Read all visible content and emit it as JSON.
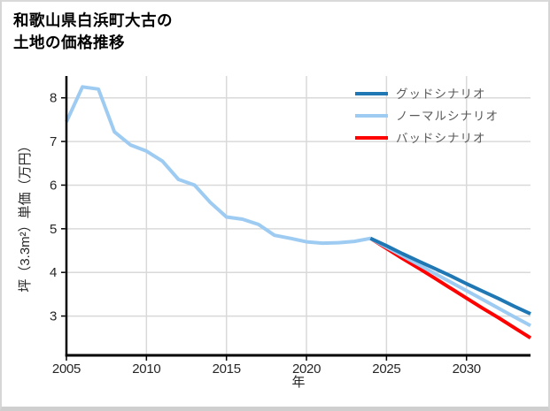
{
  "page": {
    "title_line1": "和歌山県白浜町大古の",
    "title_line2": "土地の価格推移"
  },
  "chart_data": {
    "type": "line",
    "title": "和歌山県白浜町大古の土地の価格推移",
    "xlabel": "年",
    "ylabel": "坪（3.3m²）単価（万円）",
    "xlim": [
      2005,
      2034
    ],
    "ylim": [
      2.1,
      8.5
    ],
    "x_ticks": [
      2005,
      2010,
      2015,
      2020,
      2025,
      2030
    ],
    "y_ticks": [
      3,
      4,
      5,
      6,
      7,
      8
    ],
    "grid": true,
    "legend_position": "top-right",
    "colors": {
      "grid": "#d9d9d9",
      "spine": "#000000",
      "good": "#1f77b4",
      "normal": "#9ecbf2",
      "bad": "#ff0000"
    },
    "series": [
      {
        "name": "グッドシナリオ",
        "key": "good",
        "color": "#1f77b4",
        "x": [
          2024,
          2025,
          2026,
          2027,
          2028,
          2029,
          2030,
          2031,
          2032,
          2033,
          2034
        ],
        "values": [
          4.78,
          4.61,
          4.43,
          4.26,
          4.09,
          3.92,
          3.74,
          3.57,
          3.4,
          3.22,
          3.05
        ]
      },
      {
        "name": "ノーマルシナリオ",
        "key": "normal",
        "color": "#9ecbf2",
        "x": [
          2005,
          2006,
          2007,
          2008,
          2009,
          2010,
          2011,
          2012,
          2013,
          2014,
          2015,
          2016,
          2017,
          2018,
          2019,
          2020,
          2021,
          2022,
          2023,
          2024,
          2025,
          2026,
          2027,
          2028,
          2029,
          2030,
          2031,
          2032,
          2033,
          2034
        ],
        "values": [
          7.45,
          8.25,
          8.2,
          7.22,
          6.92,
          6.78,
          6.55,
          6.13,
          6.0,
          5.6,
          5.27,
          5.22,
          5.1,
          4.85,
          4.78,
          4.7,
          4.67,
          4.68,
          4.71,
          4.78,
          4.58,
          4.38,
          4.18,
          3.98,
          3.78,
          3.58,
          3.38,
          3.18,
          2.98,
          2.78
        ]
      },
      {
        "name": "バッドシナリオ",
        "key": "bad",
        "color": "#ff0000",
        "x": [
          2024,
          2025,
          2026,
          2027,
          2028,
          2029,
          2030,
          2031,
          2032,
          2033,
          2034
        ],
        "values": [
          4.78,
          4.55,
          4.32,
          4.1,
          3.87,
          3.64,
          3.41,
          3.18,
          2.96,
          2.73,
          2.5
        ]
      }
    ]
  }
}
